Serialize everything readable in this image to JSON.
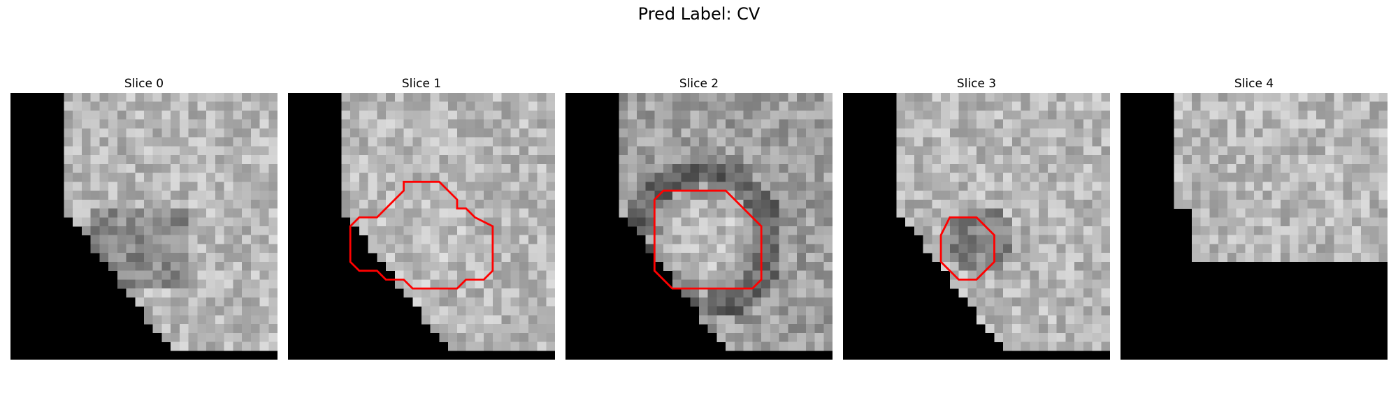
{
  "title": "Pred Label: CV",
  "slices": [
    {
      "label": "Slice 0",
      "tone": "light",
      "mask": "left-diagonal-bottom",
      "lesion": false
    },
    {
      "label": "Slice 1",
      "tone": "light",
      "mask": "left-diagonal-bottom",
      "lesion": true
    },
    {
      "label": "Slice 2",
      "tone": "mid",
      "mask": "left-diagonal-bottom",
      "lesion": true
    },
    {
      "label": "Slice 3",
      "tone": "light",
      "mask": "left-diagonal-bottom",
      "lesion": true
    },
    {
      "label": "Slice 4",
      "tone": "light",
      "mask": "top-left-block",
      "lesion": false
    }
  ],
  "colors": {
    "contour": "#ff0000",
    "background": "#000000"
  }
}
